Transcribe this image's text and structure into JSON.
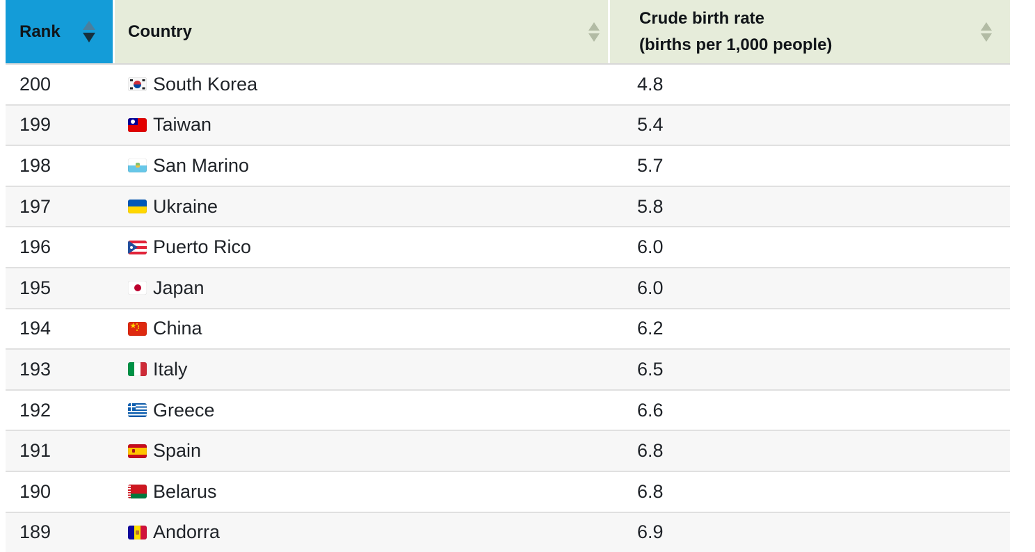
{
  "chart_data": {
    "type": "table",
    "columns": [
      {
        "label": "Rank",
        "sortable": true,
        "sort_direction": "descending"
      },
      {
        "label": "Country",
        "sortable": true,
        "sort_direction": "none"
      },
      {
        "label_line1": "Crude birth rate",
        "label_line2": "(births per 1,000 people)",
        "sortable": true,
        "sort_direction": "none"
      }
    ],
    "rows": [
      {
        "rank": "200",
        "country": "South Korea",
        "flag": "kr",
        "value": "4.8"
      },
      {
        "rank": "199",
        "country": "Taiwan",
        "flag": "tw",
        "value": "5.4"
      },
      {
        "rank": "198",
        "country": "San Marino",
        "flag": "sm",
        "value": "5.7"
      },
      {
        "rank": "197",
        "country": "Ukraine",
        "flag": "ua",
        "value": "5.8"
      },
      {
        "rank": "196",
        "country": "Puerto Rico",
        "flag": "pr",
        "value": "6.0"
      },
      {
        "rank": "195",
        "country": "Japan",
        "flag": "jp",
        "value": "6.0"
      },
      {
        "rank": "194",
        "country": "China",
        "flag": "cn",
        "value": "6.2"
      },
      {
        "rank": "193",
        "country": "Italy",
        "flag": "it",
        "value": "6.5"
      },
      {
        "rank": "192",
        "country": "Greece",
        "flag": "gr",
        "value": "6.6"
      },
      {
        "rank": "191",
        "country": "Spain",
        "flag": "es",
        "value": "6.8"
      },
      {
        "rank": "190",
        "country": "Belarus",
        "flag": "by",
        "value": "6.8"
      },
      {
        "rank": "189",
        "country": "Andorra",
        "flag": "ad",
        "value": "6.9"
      }
    ]
  },
  "colors": {
    "rank_header_bg": "#149cd8",
    "header_bg": "#e6ecda",
    "sort_arrow_active_up": "#4a7f9e",
    "sort_arrow_active_down": "#16303d",
    "sort_arrow_inactive": "#b2bba4",
    "row_bg": "#ffffff",
    "row_alt_bg": "#f7f7f7",
    "divider": "#e0e0e0",
    "text": "#1f2328"
  }
}
